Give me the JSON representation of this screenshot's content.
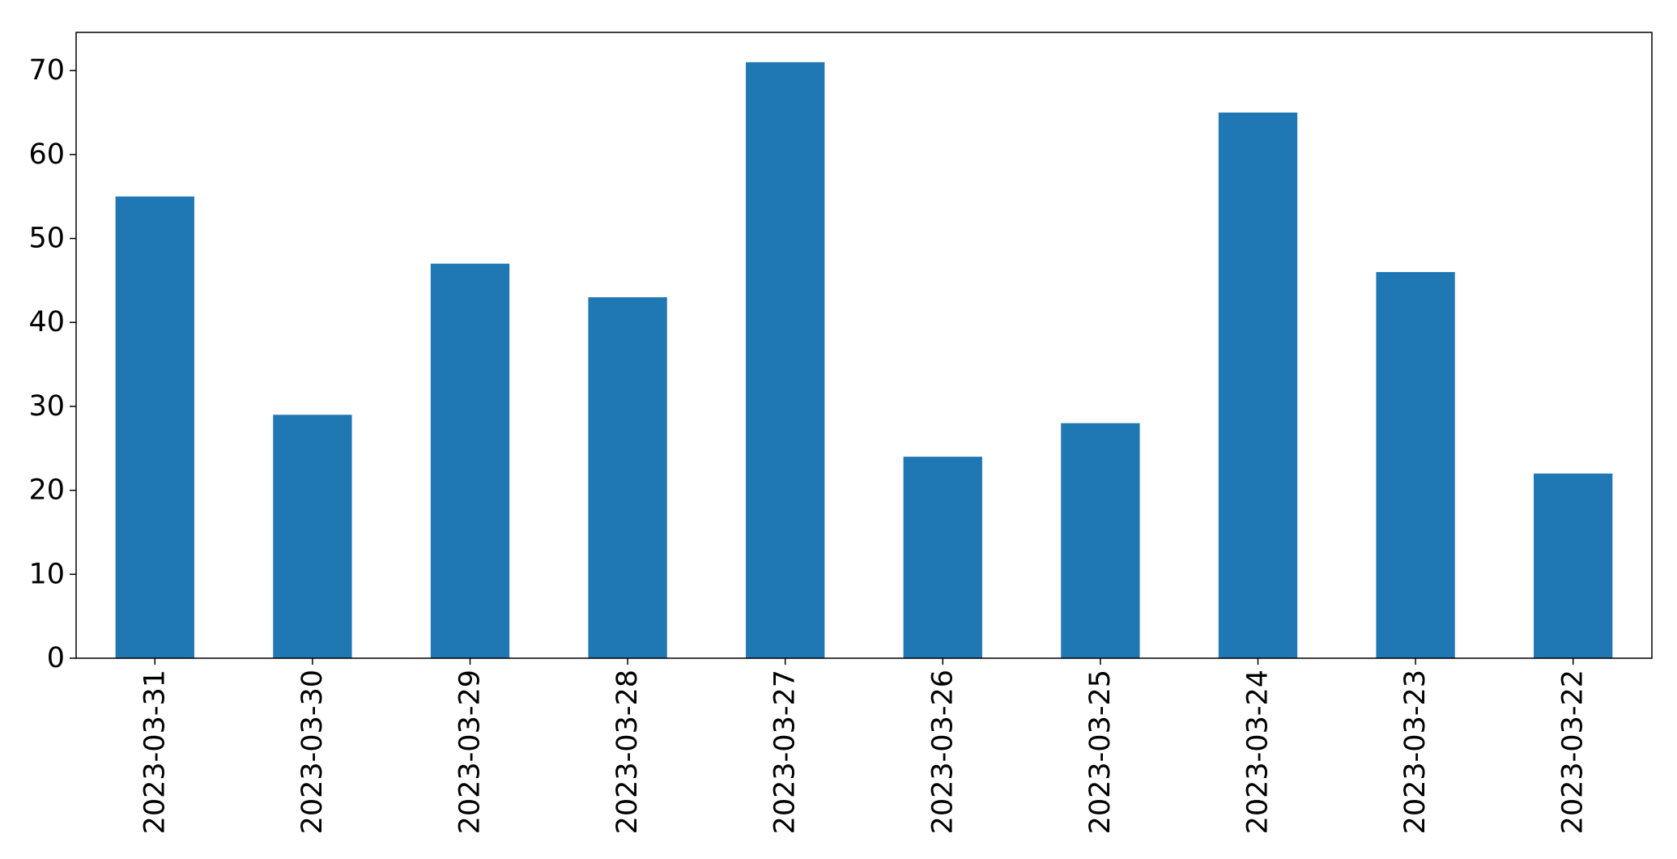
{
  "chart_data": {
    "type": "bar",
    "categories": [
      "2023-03-31",
      "2023-03-30",
      "2023-03-29",
      "2023-03-28",
      "2023-03-27",
      "2023-03-26",
      "2023-03-25",
      "2023-03-24",
      "2023-03-23",
      "2023-03-22"
    ],
    "values": [
      55,
      29,
      47,
      43,
      71,
      24,
      28,
      65,
      46,
      22
    ],
    "ylim": [
      0,
      74.55
    ],
    "yticks": [
      0,
      10,
      20,
      30,
      40,
      50,
      60,
      70
    ],
    "bar_color": "#1f77b4",
    "grid": false,
    "xtick_rotation": "vertical"
  }
}
